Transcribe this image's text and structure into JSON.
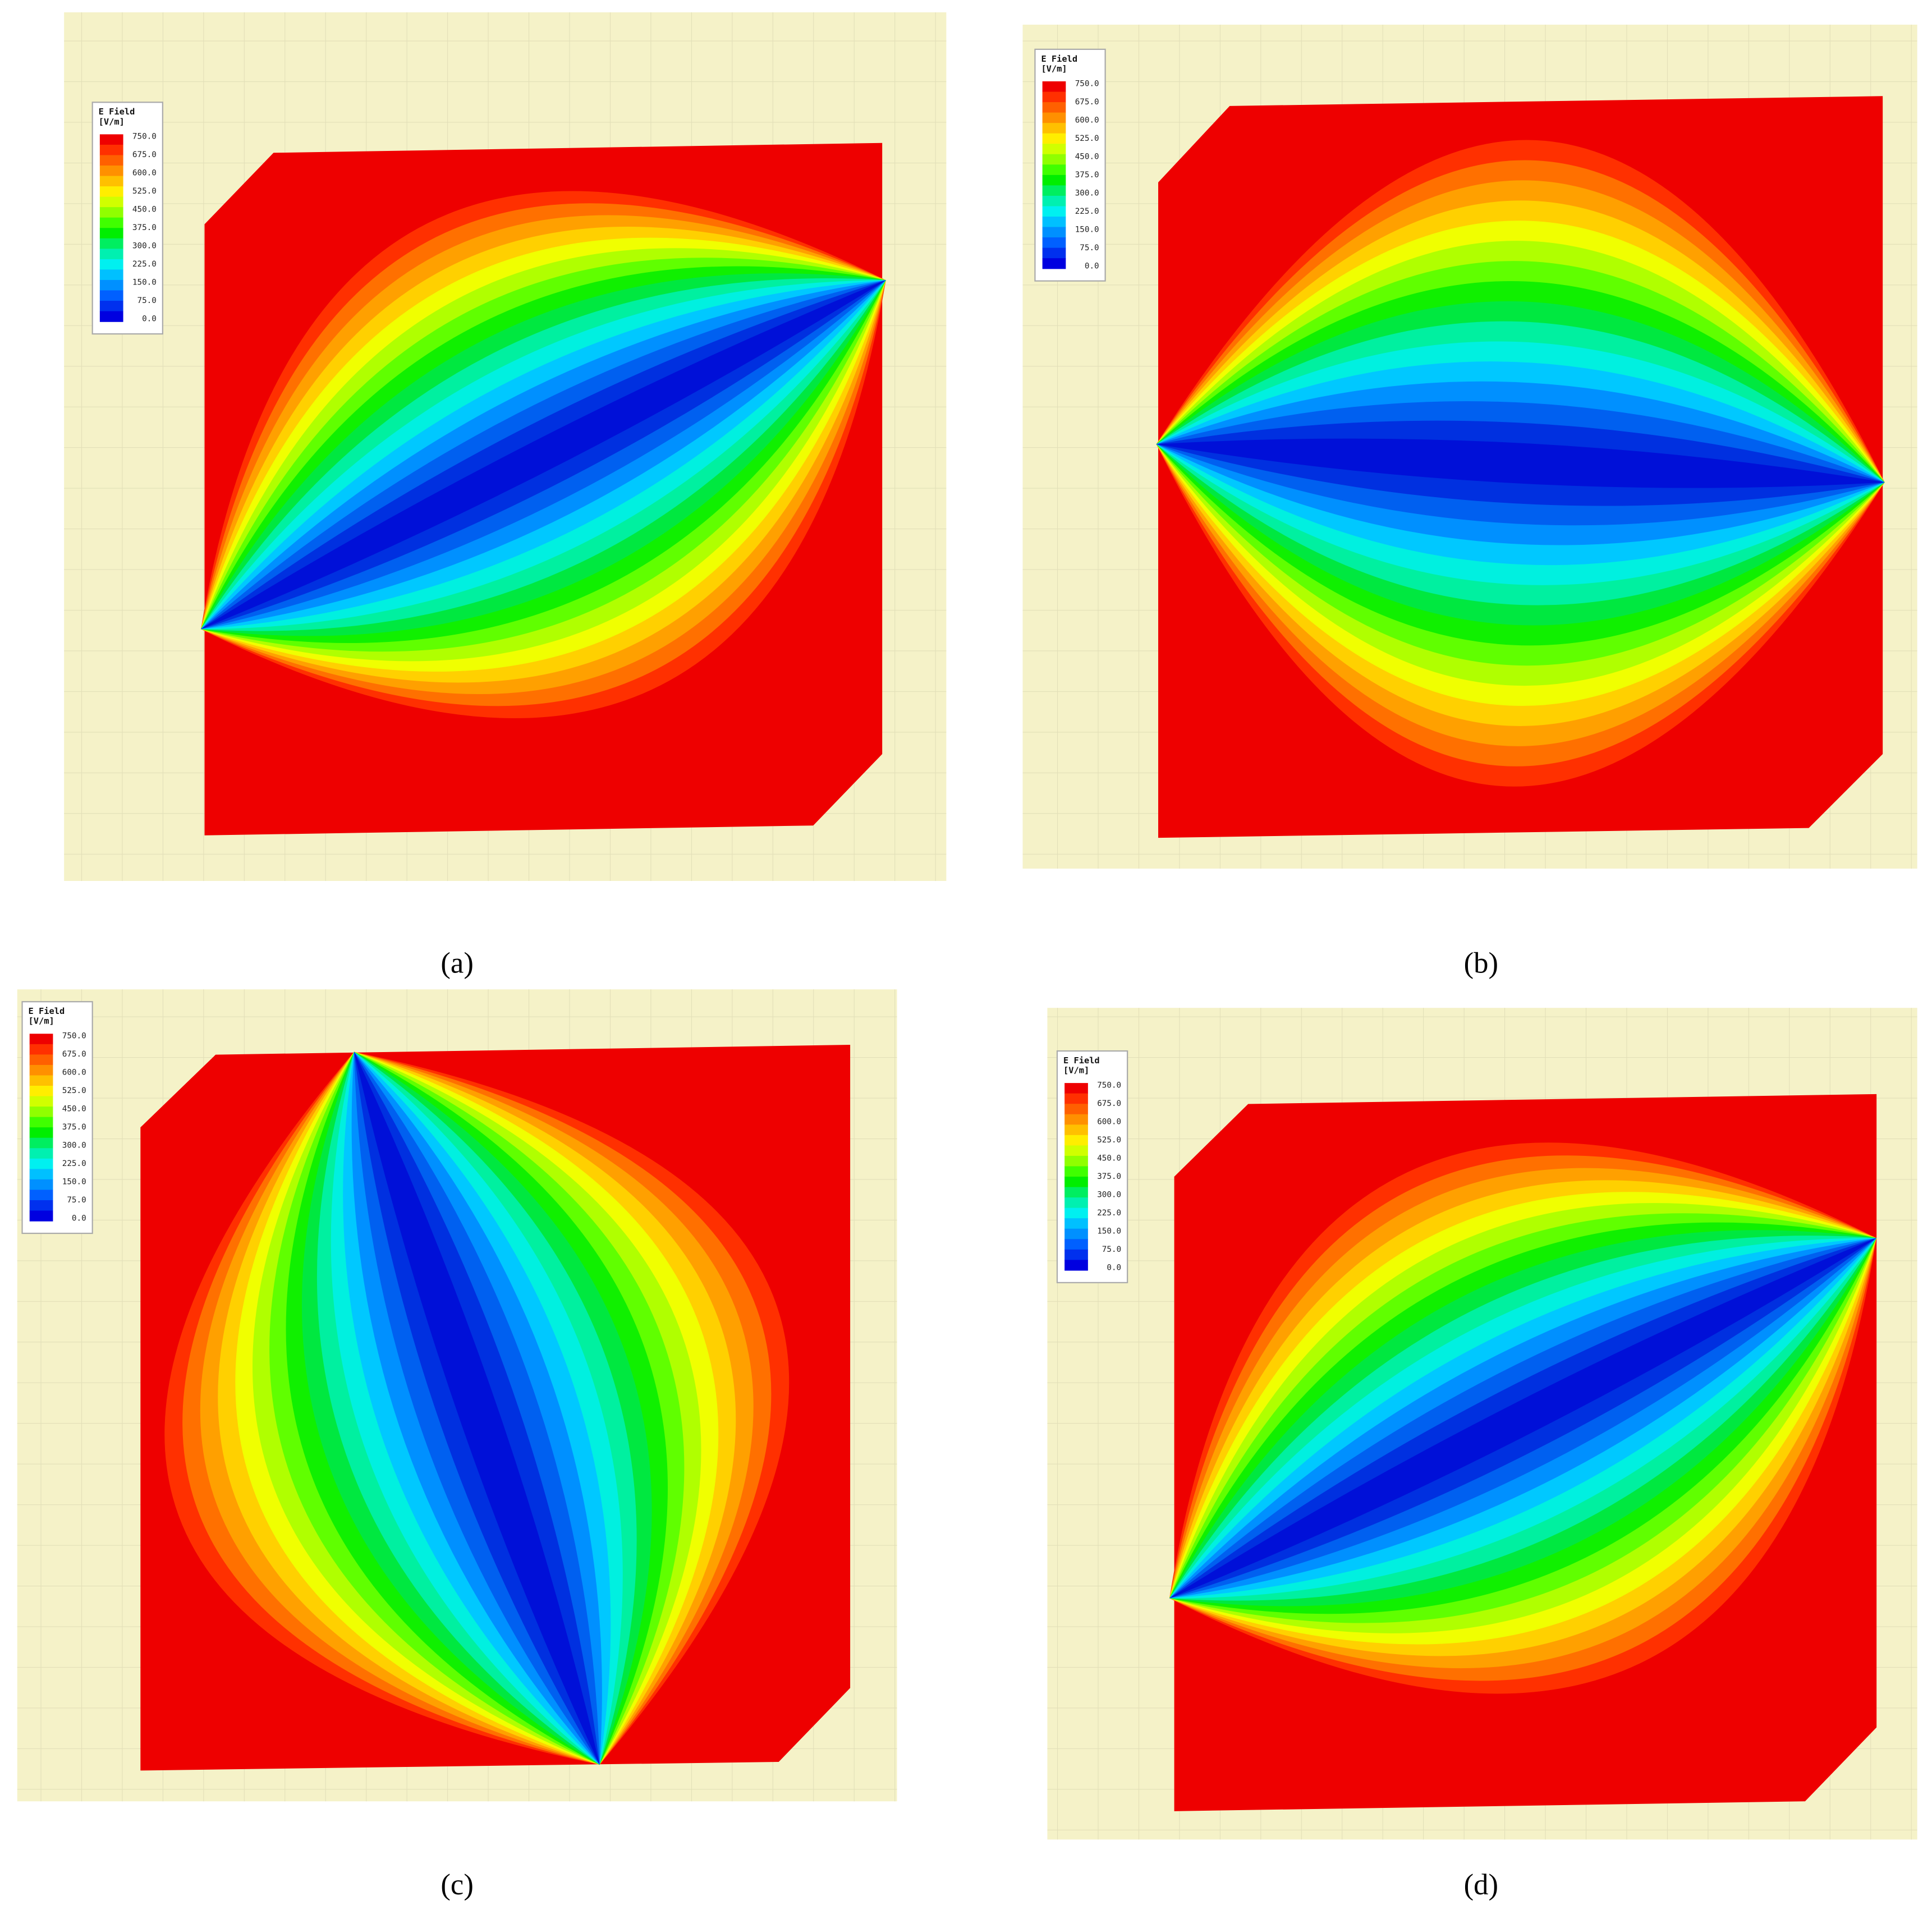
{
  "panels": [
    {
      "label": "(a)",
      "legend": {
        "title": "E Field",
        "unit": "[V/m]",
        "ticks": [
          "750.0",
          "675.0",
          "600.0",
          "525.0",
          "450.0",
          "375.0",
          "300.0",
          "225.0",
          "150.0",
          "75.0",
          "0.0"
        ]
      }
    },
    {
      "label": "(b)",
      "legend": {
        "title": "E Field",
        "unit": "[V/m]",
        "ticks": [
          "750.0",
          "675.0",
          "600.0",
          "525.0",
          "450.0",
          "375.0",
          "300.0",
          "225.0",
          "150.0",
          "75.0",
          "0.0"
        ]
      }
    },
    {
      "label": "(c)",
      "legend": {
        "title": "E Field",
        "unit": "[V/m]",
        "ticks": [
          "750.0",
          "675.0",
          "600.0",
          "525.0",
          "450.0",
          "375.0",
          "300.0",
          "225.0",
          "150.0",
          "75.0",
          "0.0"
        ]
      }
    },
    {
      "label": "(d)",
      "legend": {
        "title": "E Field",
        "unit": "[V/m]",
        "ticks": [
          "750.0",
          "675.0",
          "600.0",
          "525.0",
          "450.0",
          "375.0",
          "300.0",
          "225.0",
          "150.0",
          "75.0",
          "0.0"
        ]
      }
    }
  ]
}
